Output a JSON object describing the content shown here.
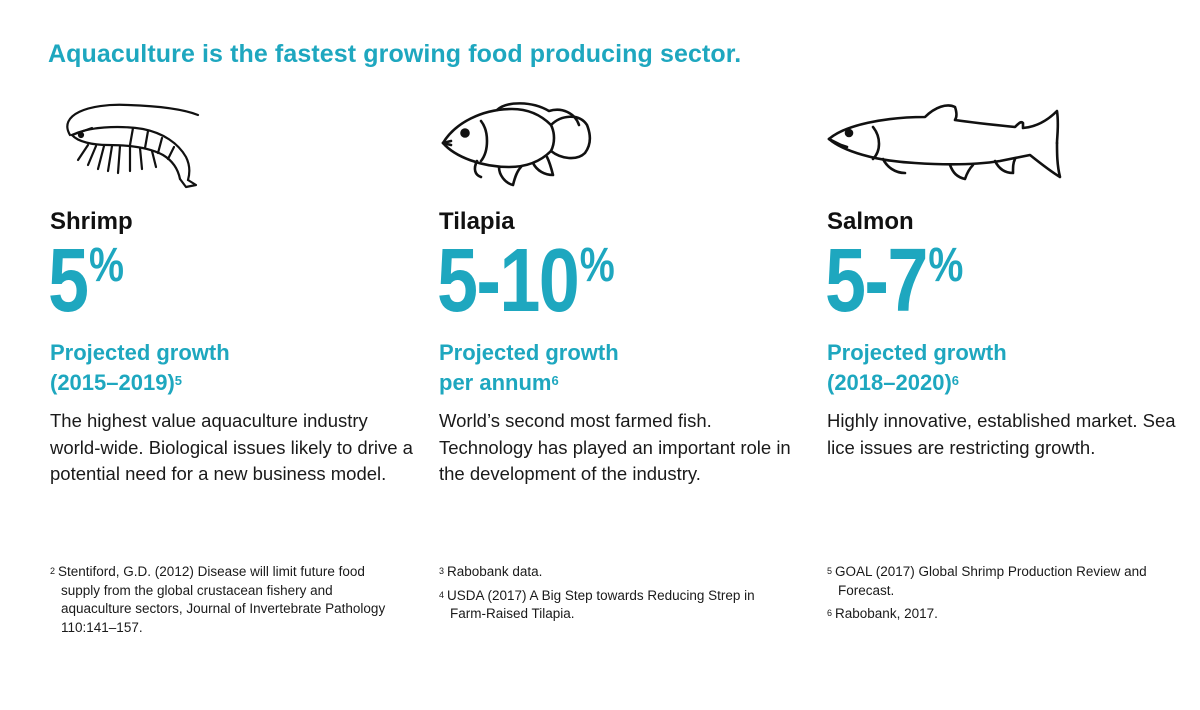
{
  "headline": "Aquaculture is the fastest growing food producing sector.",
  "colors": {
    "accent": "#1ea7bf",
    "text": "#1a1a1a"
  },
  "columns": [
    {
      "icon": "shrimp-icon",
      "species": "Shrimp",
      "stat": "5",
      "stat_unit": "%",
      "growth_line1": "Projected growth",
      "growth_line2": "(2015–2019)",
      "growth_ref": "5",
      "description": "The highest value aquaculture industry world-wide. Biological issues likely to drive a potential need for a new business model.",
      "footnotes": [
        {
          "num": "2",
          "text": "Stentiford, G.D. (2012) Disease will limit future food supply from the global crustacean fishery and aquaculture sectors, Journal of Invertebrate Pathology 110:141–157."
        }
      ]
    },
    {
      "icon": "tilapia-icon",
      "species": "Tilapia",
      "stat": "5-10",
      "stat_unit": "%",
      "growth_line1": "Projected growth",
      "growth_line2": "per annum",
      "growth_ref": "6",
      "description": "World’s second most farmed fish. Technology has played an important role in the development of the industry.",
      "footnotes": [
        {
          "num": "3",
          "text": "Rabobank data."
        },
        {
          "num": "4",
          "text": "USDA (2017) A Big Step towards Reducing Strep in Farm-Raised Tilapia."
        }
      ]
    },
    {
      "icon": "salmon-icon",
      "species": "Salmon",
      "stat": "5-7",
      "stat_unit": "%",
      "growth_line1": "Projected growth",
      "growth_line2": "(2018–2020)",
      "growth_ref": "6",
      "description": "Highly innovative, established market. Sea lice issues are restricting growth.",
      "footnotes": [
        {
          "num": "5",
          "text": "GOAL (2017) Global Shrimp Production Review and Forecast."
        },
        {
          "num": "6",
          "text": "Rabobank, 2017."
        }
      ]
    }
  ]
}
